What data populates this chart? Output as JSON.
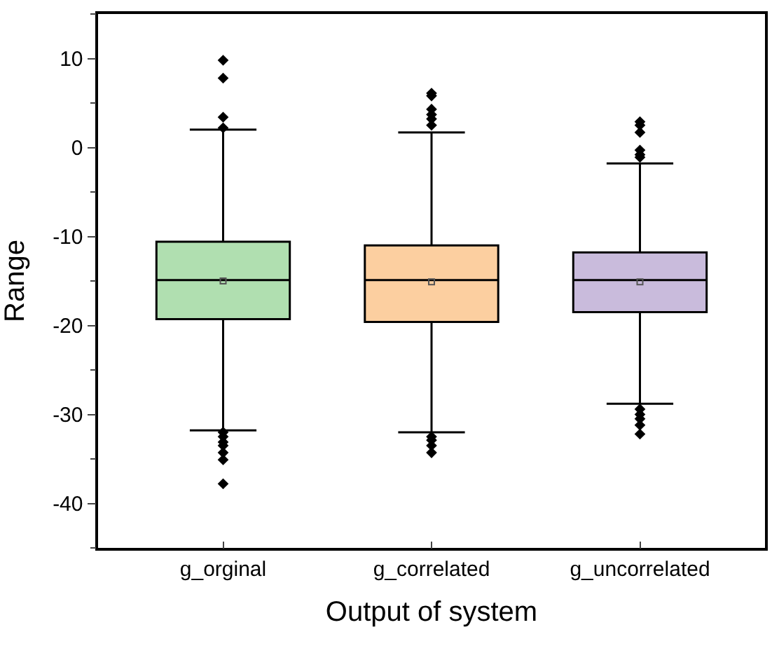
{
  "chart_data": {
    "type": "box",
    "xlabel": "Output of system",
    "ylabel": "Range",
    "categories": [
      "g_orginal",
      "g_correlated",
      "g_uncorrelated"
    ],
    "colors": [
      "#b0dfb0",
      "#fccfa0",
      "#c9bbdc"
    ],
    "boxes": [
      {
        "low": -31.8,
        "q1": -19.3,
        "median": -14.9,
        "q3": -10.6,
        "high": 2.0,
        "mean": -15.0,
        "outliers": [
          9.8,
          7.8,
          3.4,
          2.2,
          -32.0,
          -32.5,
          -33.1,
          -33.5,
          -34.3,
          -35.1,
          -37.8
        ]
      },
      {
        "low": -32.0,
        "q1": -19.6,
        "median": -14.9,
        "q3": -11.0,
        "high": 1.7,
        "mean": -15.1,
        "outliers": [
          6.1,
          5.8,
          4.3,
          3.7,
          3.2,
          2.5,
          -32.5,
          -32.9,
          -33.5,
          -34.3
        ]
      },
      {
        "low": -28.8,
        "q1": -18.5,
        "median": -14.9,
        "q3": -11.8,
        "high": -1.8,
        "mean": -15.1,
        "outliers": [
          2.9,
          2.5,
          1.7,
          -0.3,
          -0.8,
          -1.1,
          -29.4,
          -30.0,
          -30.5,
          -31.2,
          -32.2
        ]
      }
    ],
    "ylim": [
      -45,
      15
    ],
    "yticks": [
      10,
      0,
      -10,
      -20,
      -30,
      -40
    ],
    "marker": "diamond"
  }
}
